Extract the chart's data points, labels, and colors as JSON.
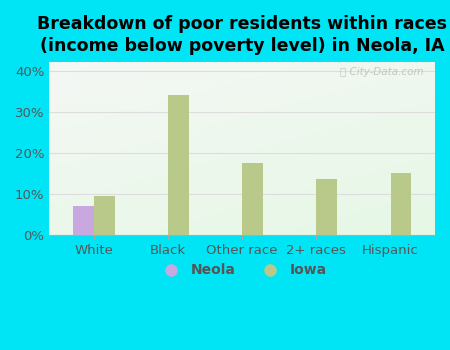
{
  "title": "Breakdown of poor residents within races\n(income below poverty level) in Neola, IA",
  "categories": [
    "White",
    "Black",
    "Other race",
    "2+ races",
    "Hispanic"
  ],
  "neola_values": [
    7.0,
    0.0,
    0.0,
    0.0,
    0.0
  ],
  "iowa_values": [
    9.5,
    34.0,
    17.5,
    13.5,
    15.0
  ],
  "neola_color": "#c9a8df",
  "iowa_color": "#b8c98a",
  "background_outer": "#00e5f5",
  "background_inner_topleft": "#e8f5e8",
  "background_inner_white": "#f8fdf8",
  "bar_width": 0.28,
  "ylim": [
    0,
    42
  ],
  "yticks": [
    0,
    10,
    20,
    30,
    40
  ],
  "grid_color": "#dddddd",
  "title_fontsize": 12.5,
  "tick_fontsize": 9.5,
  "legend_fontsize": 10,
  "watermark_color": "#c0c8c0"
}
